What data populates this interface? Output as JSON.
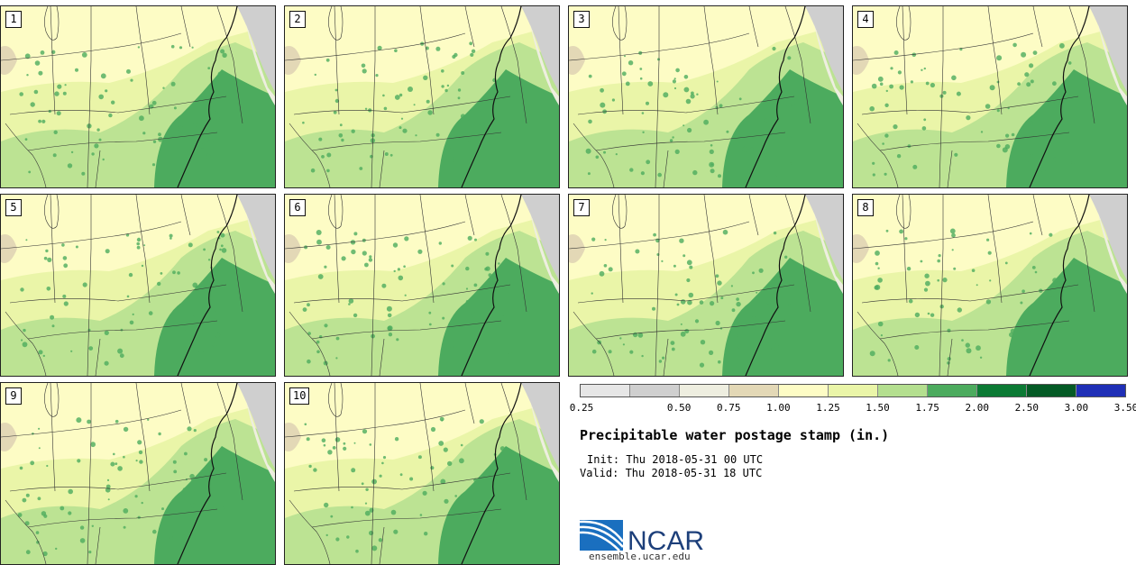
{
  "panels": [
    {
      "label": "1"
    },
    {
      "label": "2"
    },
    {
      "label": "3"
    },
    {
      "label": "4"
    },
    {
      "label": "5"
    },
    {
      "label": "6"
    },
    {
      "label": "7"
    },
    {
      "label": "8"
    },
    {
      "label": "9"
    },
    {
      "label": "10"
    }
  ],
  "colorbar": {
    "colors": [
      "#e6e6e6",
      "#cfcfcf",
      "#eeeee0",
      "#e3d8b6",
      "#fdfcc5",
      "#eaf5a8",
      "#b4df8f",
      "#4cab5e",
      "#0b7a34",
      "#045a25",
      "#1f2fb6"
    ],
    "ticks": [
      "0.25",
      "0.50",
      "0.75",
      "1.00",
      "1.25",
      "1.50",
      "1.75",
      "2.00",
      "2.50",
      "3.00",
      "3.50"
    ]
  },
  "title": "Precipitable water postage stamp (in.)",
  "init_text": "Init: Thu 2018-05-31 00 UTC",
  "valid_text": "Valid: Thu 2018-05-31 18 UTC",
  "logo_text": "NCAR",
  "site_url": "ensemble.ucar.edu"
}
